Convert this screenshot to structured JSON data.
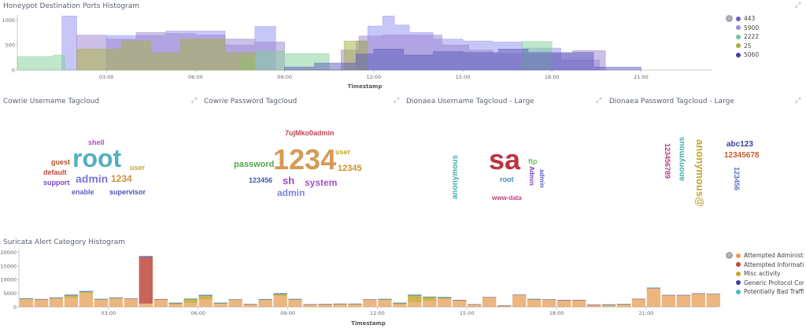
{
  "ports_panel": {
    "title": "Honeypot Destination Ports Histogram",
    "xlabel": "Timestamp",
    "legend": [
      {
        "label": "443",
        "color": "#6a5fbf"
      },
      {
        "label": "5900",
        "color": "#9b8fd9"
      },
      {
        "label": "2222",
        "color": "#6dc790"
      },
      {
        "label": "25",
        "color": "#a3b23c"
      },
      {
        "label": "5060",
        "color": "#3f3fa8"
      }
    ]
  },
  "cloud_panels": [
    {
      "title": "Cowrie Username Tagcloud"
    },
    {
      "title": "Cowrie Password Tagcloud"
    },
    {
      "title": "Dionaea Username Tagcloud - Large"
    },
    {
      "title": "Dionaea Password Tagcloud - Large"
    }
  ],
  "cowrie_user_words": [
    {
      "text": "shell",
      "color": "#b94bbf"
    },
    {
      "text": "root",
      "color": "#54b0c0"
    },
    {
      "text": "guest",
      "color": "#b0532f"
    },
    {
      "text": "default",
      "color": "#c4453a"
    },
    {
      "text": "1234",
      "color": "#d0913a"
    },
    {
      "text": "user",
      "color": "#c9a52c"
    },
    {
      "text": "admin",
      "color": "#7878d8"
    },
    {
      "text": "support",
      "color": "#7a47c4"
    },
    {
      "text": "enable",
      "color": "#5d5ec8"
    },
    {
      "text": "supervisor",
      "color": "#4a54b8"
    }
  ],
  "cowrie_pass_words": [
    {
      "text": "7ujMko0admin",
      "color": "#c2435a"
    },
    {
      "text": "1234",
      "color": "#d69a55"
    },
    {
      "text": "user",
      "color": "#c9a52c"
    },
    {
      "text": "password",
      "color": "#53a74a"
    },
    {
      "text": "12345",
      "color": "#c99428"
    },
    {
      "text": "123456",
      "color": "#3f5bb0"
    },
    {
      "text": "sh",
      "color": "#a348c4"
    },
    {
      "text": "system",
      "color": "#9e54c8"
    },
    {
      "text": "admin",
      "color": "#7d86dc"
    }
  ],
  "dionaea_user_words": [
    {
      "text": "sa",
      "color": "#be3140"
    },
    {
      "text": "anonymous",
      "color": "#3fb0aa"
    },
    {
      "text": "ftp",
      "color": "#64c464"
    },
    {
      "text": "root",
      "color": "#3e8fc2"
    },
    {
      "text": "Admin",
      "color": "#7d3fae"
    },
    {
      "text": "admin",
      "color": "#5b63c8"
    },
    {
      "text": "www-data",
      "color": "#c03f80"
    }
  ],
  "dionaea_pass_words": [
    {
      "text": "12345678",
      "color": "#c65c2f"
    },
    {
      "text": "123456789",
      "color": "#b03c8c"
    },
    {
      "text": "anonymous",
      "color": "#3fb0aa"
    },
    {
      "text": "anonymous@",
      "color": "#c4a732"
    },
    {
      "text": "abc123",
      "color": "#3a3f9e"
    },
    {
      "text": "123456",
      "color": "#5c6dc2"
    }
  ],
  "suricata_panel": {
    "title": "Suricata Alert Category Histogram",
    "xlabel": "Timestamp",
    "legend": [
      {
        "label": "Attempted Administrator Privilege Gain",
        "color": "#e79e54"
      },
      {
        "label": "Attempted Information Leak",
        "color": "#c0473c"
      },
      {
        "label": "Misc activity",
        "color": "#c4a732"
      },
      {
        "label": "Generic Protocol Command Decode",
        "color": "#3f3fa8"
      },
      {
        "label": "Potentially Bad Traffic",
        "color": "#4ab8c8"
      }
    ]
  },
  "chart_data": [
    {
      "type": "area",
      "x_ticks": [
        "03:00",
        "06:00",
        "09:00",
        "12:00",
        "15:00",
        "18:00",
        "21:00"
      ],
      "y_ticks": [
        0,
        500,
        1000
      ],
      "ylim": [
        0,
        1100
      ],
      "xlabel": "Timestamp",
      "x_hours_start": 0,
      "x_hours_end": 23.4,
      "series": [
        {
          "name": "5900",
          "color": "#8f8ff0",
          "values": [
            [
              1.5,
              0
            ],
            [
              1.5,
              1080
            ],
            [
              2,
              1080
            ],
            [
              2,
              0
            ],
            [
              3,
              0
            ],
            [
              3,
              690
            ],
            [
              4,
              690
            ],
            [
              5,
              690
            ],
            [
              5,
              780
            ],
            [
              6,
              780
            ],
            [
              7,
              780
            ],
            [
              7,
              500
            ],
            [
              8,
              500
            ],
            [
              8,
              870
            ],
            [
              8.7,
              870
            ],
            [
              8.7,
              0
            ],
            [
              11.4,
              0
            ],
            [
              11.4,
              580
            ],
            [
              11.8,
              580
            ],
            [
              11.8,
              880
            ],
            [
              12.3,
              880
            ],
            [
              12.3,
              1080
            ],
            [
              12.7,
              1080
            ],
            [
              12.7,
              900
            ],
            [
              13.2,
              900
            ],
            [
              13.2,
              750
            ],
            [
              14,
              750
            ],
            [
              14,
              620
            ],
            [
              15,
              620
            ],
            [
              15,
              580
            ],
            [
              16,
              580
            ],
            [
              16,
              560
            ],
            [
              17,
              560
            ],
            [
              17,
              440
            ],
            [
              18.3,
              440
            ],
            [
              18.3,
              200
            ],
            [
              19.6,
              200
            ],
            [
              19.6,
              0
            ]
          ]
        },
        {
          "name": "443",
          "color": "#9b82cf",
          "values": [
            [
              2,
              0
            ],
            [
              2,
              700
            ],
            [
              3,
              700
            ],
            [
              3,
              620
            ],
            [
              4,
              620
            ],
            [
              4,
              750
            ],
            [
              5,
              750
            ],
            [
              5,
              730
            ],
            [
              6,
              730
            ],
            [
              6,
              700
            ],
            [
              7,
              700
            ],
            [
              7,
              620
            ],
            [
              8,
              620
            ],
            [
              8,
              560
            ],
            [
              9,
              560
            ],
            [
              9,
              0
            ],
            [
              10.9,
              0
            ],
            [
              10.9,
              400
            ],
            [
              11.5,
              400
            ],
            [
              11.5,
              680
            ],
            [
              12.3,
              680
            ],
            [
              12.3,
              700
            ],
            [
              14.3,
              700
            ],
            [
              14.3,
              500
            ],
            [
              15.2,
              500
            ],
            [
              15.2,
              400
            ],
            [
              16,
              400
            ],
            [
              16,
              330
            ],
            [
              18.7,
              330
            ],
            [
              18.7,
              390
            ],
            [
              19.8,
              390
            ],
            [
              19.8,
              0
            ]
          ]
        },
        {
          "name": "2222",
          "color": "#7fd09a",
          "values": [
            [
              0,
              0
            ],
            [
              0,
              270
            ],
            [
              1.2,
              270
            ],
            [
              1.2,
              300
            ],
            [
              1.6,
              300
            ],
            [
              1.6,
              0
            ],
            [
              7.5,
              0
            ],
            [
              7.5,
              270
            ],
            [
              8,
              270
            ],
            [
              8,
              380
            ],
            [
              9,
              380
            ],
            [
              9,
              330
            ],
            [
              10.5,
              330
            ],
            [
              10.5,
              0
            ],
            [
              17,
              0
            ],
            [
              17,
              570
            ],
            [
              18,
              570
            ],
            [
              18,
              0
            ]
          ]
        },
        {
          "name": "25",
          "color": "#a3b23c",
          "values": [
            [
              2,
              0
            ],
            [
              2,
              420
            ],
            [
              3.5,
              420
            ],
            [
              3.5,
              580
            ],
            [
              4.5,
              580
            ],
            [
              4.5,
              340
            ],
            [
              5.5,
              340
            ],
            [
              5.5,
              620
            ],
            [
              7,
              620
            ],
            [
              7,
              350
            ],
            [
              8,
              350
            ],
            [
              8,
              0
            ],
            [
              11,
              0
            ],
            [
              11,
              580
            ],
            [
              11.8,
              580
            ],
            [
              11.8,
              0
            ]
          ]
        },
        {
          "name": "5060",
          "color": "#5b5ab8",
          "values": [
            [
              9,
              0
            ],
            [
              9,
              60
            ],
            [
              10,
              60
            ],
            [
              10,
              140
            ],
            [
              11.4,
              140
            ],
            [
              11.4,
              320
            ],
            [
              12,
              320
            ],
            [
              12,
              420
            ],
            [
              13,
              420
            ],
            [
              13,
              300
            ],
            [
              14,
              300
            ],
            [
              14,
              370
            ],
            [
              15,
              370
            ],
            [
              15,
              350
            ],
            [
              16.2,
              350
            ],
            [
              16.2,
              420
            ],
            [
              17.2,
              420
            ],
            [
              17.2,
              350
            ],
            [
              19.4,
              350
            ],
            [
              19.4,
              60
            ],
            [
              21,
              60
            ],
            [
              21,
              0
            ]
          ]
        }
      ]
    },
    {
      "type": "bar",
      "x_ticks": [
        "03:00",
        "06:00",
        "09:00",
        "12:00",
        "15:00",
        "18:00",
        "21:00"
      ],
      "y_ticks": [
        0,
        5000,
        10000,
        15000,
        20000
      ],
      "ylim": [
        0,
        21000
      ],
      "xlabel": "Timestamp",
      "x_hours_start": 0,
      "x_hours_end": 23.4,
      "bar_hours": 0.5,
      "series_names": [
        "Attempted Administrator Privilege Gain",
        "Attempted Information Leak",
        "Misc activity",
        "Generic Protocol Command Decode",
        "Potentially Bad Traffic"
      ],
      "bars": [
        [
          2700,
          0,
          300,
          100,
          100
        ],
        [
          2800,
          0,
          0,
          100,
          0
        ],
        [
          3000,
          0,
          300,
          100,
          100
        ],
        [
          3200,
          0,
          1000,
          200,
          200
        ],
        [
          5000,
          0,
          500,
          200,
          200
        ],
        [
          2500,
          0,
          300,
          100,
          100
        ],
        [
          3000,
          0,
          300,
          100,
          100
        ],
        [
          3000,
          0,
          0,
          100,
          0
        ],
        [
          1200,
          17000,
          0,
          300,
          200
        ],
        [
          2800,
          0,
          0,
          100,
          0
        ],
        [
          1000,
          0,
          400,
          100,
          100
        ],
        [
          1400,
          0,
          1500,
          100,
          100
        ],
        [
          2700,
          0,
          1400,
          200,
          200
        ],
        [
          1100,
          0,
          300,
          100,
          100
        ],
        [
          2700,
          0,
          0,
          100,
          0
        ],
        [
          1000,
          0,
          0,
          100,
          0
        ],
        [
          2500,
          0,
          200,
          100,
          100
        ],
        [
          4000,
          0,
          700,
          200,
          200
        ],
        [
          2600,
          0,
          200,
          100,
          100
        ],
        [
          800,
          0,
          100,
          100,
          0
        ],
        [
          900,
          0,
          100,
          100,
          0
        ],
        [
          1000,
          0,
          100,
          100,
          0
        ],
        [
          1000,
          0,
          100,
          100,
          0
        ],
        [
          2700,
          0,
          0,
          100,
          0
        ],
        [
          2700,
          0,
          100,
          100,
          100
        ],
        [
          1000,
          0,
          400,
          100,
          100
        ],
        [
          1700,
          0,
          2500,
          200,
          200
        ],
        [
          2300,
          0,
          1300,
          100,
          100
        ],
        [
          3000,
          0,
          300,
          200,
          200
        ],
        [
          2500,
          0,
          0,
          100,
          0
        ],
        [
          900,
          0,
          0,
          100,
          0
        ],
        [
          3500,
          0,
          0,
          100,
          0
        ],
        [
          500,
          0,
          0,
          100,
          0
        ],
        [
          4400,
          0,
          0,
          100,
          0
        ],
        [
          2500,
          0,
          300,
          100,
          100
        ],
        [
          2700,
          0,
          0,
          100,
          0
        ],
        [
          2500,
          0,
          0,
          100,
          0
        ],
        [
          2500,
          0,
          0,
          100,
          0
        ],
        [
          700,
          0,
          100,
          100,
          0
        ],
        [
          700,
          0,
          100,
          100,
          100
        ],
        [
          900,
          0,
          100,
          100,
          0
        ],
        [
          2900,
          0,
          0,
          100,
          0
        ],
        [
          6800,
          0,
          0,
          200,
          100
        ],
        [
          4300,
          0,
          0,
          100,
          0
        ],
        [
          4300,
          0,
          0,
          100,
          0
        ],
        [
          4900,
          0,
          0,
          100,
          0
        ],
        [
          4700,
          0,
          0,
          100,
          0
        ],
        [
          6000,
          0,
          0,
          200,
          0
        ],
        [
          3500,
          0,
          0,
          100,
          0
        ],
        [
          3400,
          0,
          0,
          100,
          0
        ],
        [
          2400,
          0,
          0,
          100,
          0
        ]
      ]
    }
  ]
}
